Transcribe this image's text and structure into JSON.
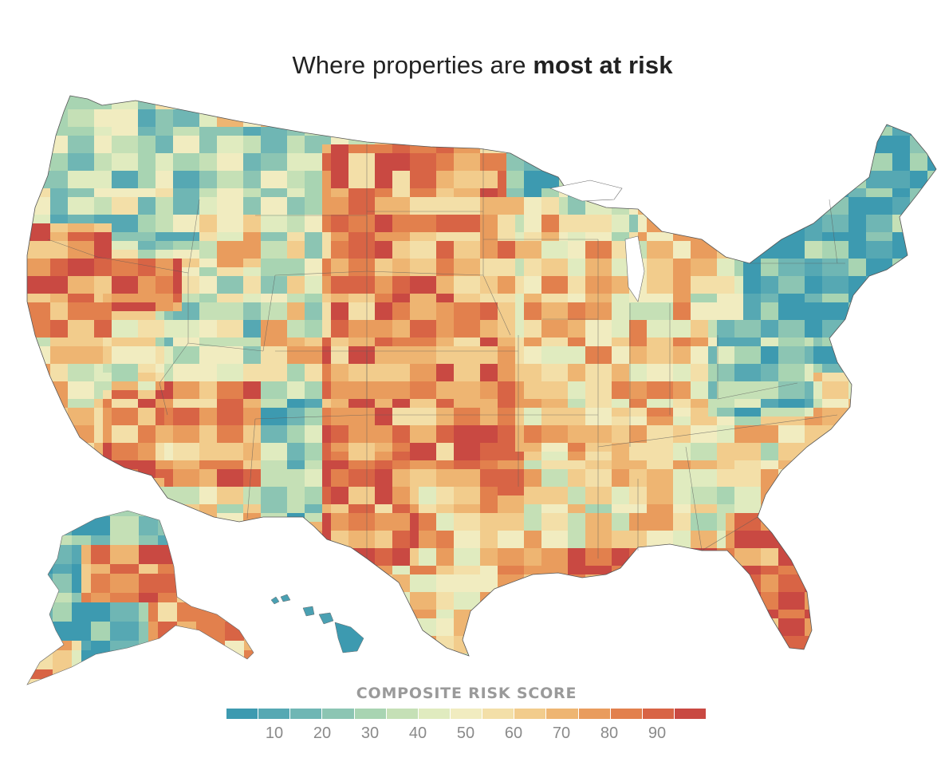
{
  "title": {
    "pre": "Where properties are ",
    "bold": "most at risk"
  },
  "legend": {
    "title": "COMPOSITE RISK SCORE",
    "ticks": [
      "10",
      "20",
      "30",
      "40",
      "50",
      "60",
      "70",
      "80",
      "90"
    ],
    "colors": [
      "#3d9ab0",
      "#56a8b3",
      "#6fb6b4",
      "#8cc5b3",
      "#a8d4b2",
      "#c5e0b6",
      "#e0ebbf",
      "#f1ecc0",
      "#f3dfa8",
      "#f2cc8c",
      "#eeb572",
      "#e99c5d",
      "#e2804d",
      "#d86445",
      "#c94942"
    ]
  },
  "map": {
    "regions": [
      {
        "name": "contiguous-us"
      },
      {
        "name": "alaska"
      },
      {
        "name": "hawaii"
      }
    ]
  }
}
